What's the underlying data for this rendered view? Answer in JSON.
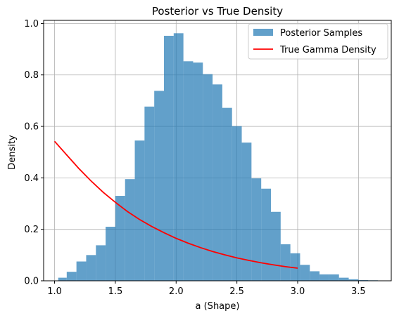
{
  "chart_data": {
    "type": "bar",
    "title": "Posterior vs True Density",
    "xlabel": "a (Shape)",
    "ylabel": "Density",
    "xlim": [
      0.91,
      3.77
    ],
    "ylim": [
      0.0,
      1.012
    ],
    "xticks": [
      1.0,
      1.5,
      2.0,
      2.5,
      3.0,
      3.5
    ],
    "xtick_labels": [
      "1.0",
      "1.5",
      "2.0",
      "2.5",
      "3.0",
      "3.5"
    ],
    "yticks": [
      0.0,
      0.2,
      0.4,
      0.6,
      0.8,
      1.0
    ],
    "ytick_labels": [
      "0.0",
      "0.2",
      "0.4",
      "0.6",
      "0.8",
      "1.0"
    ],
    "grid": true,
    "legend_position": "top-right",
    "colors": {
      "histogram": "#1f77b4",
      "histogram_opacity": 0.7,
      "line": "#ff0000",
      "grid": "#b0b0b0"
    },
    "series": [
      {
        "name": "Posterior Samples",
        "kind": "histogram",
        "bin_edges": [
          1.03,
          1.1,
          1.18,
          1.26,
          1.34,
          1.42,
          1.5,
          1.58,
          1.66,
          1.74,
          1.82,
          1.9,
          1.98,
          2.06,
          2.14,
          2.22,
          2.3,
          2.38,
          2.46,
          2.54,
          2.62,
          2.7,
          2.78,
          2.86,
          2.94,
          3.02,
          3.1,
          3.18,
          3.26,
          3.34,
          3.42,
          3.5,
          3.58,
          3.66,
          3.7
        ],
        "densities": [
          0.012,
          0.035,
          0.075,
          0.1,
          0.138,
          0.21,
          0.33,
          0.395,
          0.545,
          0.677,
          0.738,
          0.952,
          0.962,
          0.853,
          0.848,
          0.803,
          0.763,
          0.672,
          0.601,
          0.537,
          0.398,
          0.358,
          0.268,
          0.142,
          0.107,
          0.062,
          0.037,
          0.025,
          0.025,
          0.012,
          0.006,
          0.003,
          0.002,
          0.001
        ]
      },
      {
        "name": "True Gamma Density",
        "kind": "line",
        "x": [
          1.0,
          1.1,
          1.2,
          1.3,
          1.4,
          1.5,
          1.6,
          1.7,
          1.8,
          1.9,
          2.0,
          2.1,
          2.2,
          2.3,
          2.4,
          2.5,
          2.6,
          2.7,
          2.8,
          2.9,
          3.0
        ],
        "y": [
          0.542,
          0.489,
          0.436,
          0.388,
          0.344,
          0.305,
          0.269,
          0.238,
          0.211,
          0.187,
          0.165,
          0.146,
          0.129,
          0.114,
          0.101,
          0.089,
          0.079,
          0.07,
          0.062,
          0.055,
          0.049
        ]
      }
    ]
  }
}
